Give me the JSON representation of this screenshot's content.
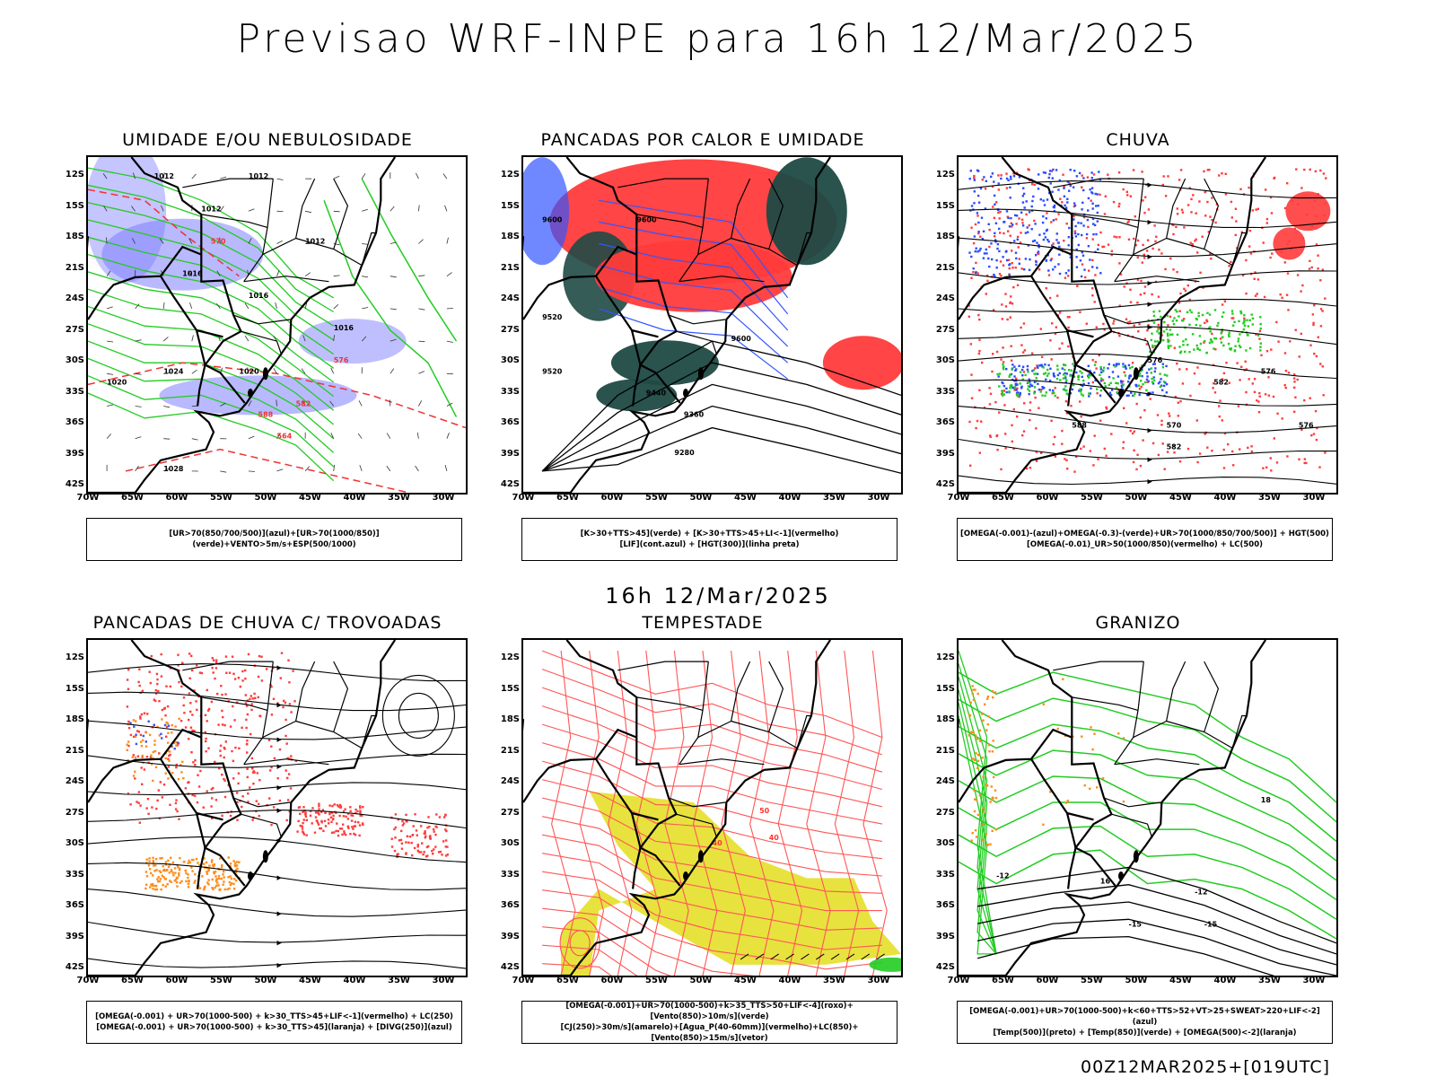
{
  "title": "Previsao WRF-INPE  para 16h 12/Mar/2025",
  "mid_title": "16h 12/Mar/2025",
  "footer": "00Z12MAR2025+[019UTC]",
  "axes": {
    "lat": [
      "12S",
      "15S",
      "18S",
      "21S",
      "24S",
      "27S",
      "30S",
      "33S",
      "36S",
      "39S",
      "42S"
    ],
    "lon": [
      "70W",
      "65W",
      "60W",
      "55W",
      "50W",
      "45W",
      "40W",
      "35W",
      "30W"
    ]
  },
  "panels": [
    {
      "id": "umidade",
      "title": "UMIDADE E/OU NEBULOSIDADE",
      "legend": [
        "[UR>70(850/700/500)](azul)+[UR>70(1000/850)](verde)+VENTO>5m/s+ESP(500/1000)"
      ],
      "contour_labels": [
        "1012",
        "1012",
        "1012",
        "1012",
        "1016",
        "1016",
        "1016",
        "1020",
        "1020",
        "1024",
        "1028",
        "570",
        "576",
        "582",
        "588",
        "564"
      ]
    },
    {
      "id": "pancadas-calor",
      "title": "PANCADAS POR CALOR E UMIDADE",
      "legend": [
        "[K>30+TTS>45](verde) + [K>30+TTS>45+LI<-1](vermelho)",
        "[LIF](cont.azul) + [HGT(300)](linha preta)"
      ],
      "contour_labels": [
        "9600",
        "9600",
        "9520",
        "9520",
        "9440",
        "9360",
        "9280",
        "9600"
      ]
    },
    {
      "id": "chuva",
      "title": "CHUVA",
      "legend": [
        "[OMEGA(-0.001)-(azul)+OMEGA(-0.3)-(verde)+UR>70(1000/850/700/500)] + HGT(500)",
        "[OMEGA(-0.01)_UR>50(1000/850)(vermelho) + LC(500)"
      ],
      "contour_labels": [
        "576",
        "576",
        "582",
        "576",
        "570",
        "582",
        "588"
      ]
    },
    {
      "id": "trovoadas",
      "title": "PANCADAS DE CHUVA C/ TROVOADAS",
      "legend": [
        "[OMEGA(-0.001) + UR>70(1000-500) + k>30_TTS>45+LIF<-1](vermelho) + LC(250)",
        "[OMEGA(-0.001) + UR>70(1000-500) + k>30_TTS>45](laranja) + [DIVG(250)](azul)"
      ],
      "contour_labels": []
    },
    {
      "id": "tempestade",
      "title": "TEMPESTADE",
      "legend": [
        "[OMEGA(-0.001)+UR>70(1000-500)+k>35_TTS>50+LIF<-4](roxo)+[Vento(850)>10m/s](verde)",
        "[CJ(250)>30m/s](amarelo)+[Agua_P(40-60mm)](vermelho)+LC(850)+[Vento(850)>15m/s](vetor)"
      ],
      "contour_labels": [
        "50",
        "40",
        "40"
      ]
    },
    {
      "id": "granizo",
      "title": "GRANIZO",
      "legend": [
        "[OMEGA(-0.001)+UR>70(1000-500)+k<60+TTS>52+VT>25+SWEAT>220+LIF<-2](azul)",
        "[Temp(500)](preto) + [Temp(850)](verde) + [OMEGA(500)<-2](laranja)"
      ],
      "contour_labels": [
        "-12",
        "-15",
        "-15",
        "-12",
        "16",
        "18"
      ]
    }
  ],
  "colors": {
    "blue": "#7f7fff",
    "green": "#22cc22",
    "red": "#ff3b3b",
    "darkgreen": "#1f4a45",
    "yellow": "#e6df2a",
    "orange": "#ff8c1a",
    "lifblue": "#3355ff"
  }
}
